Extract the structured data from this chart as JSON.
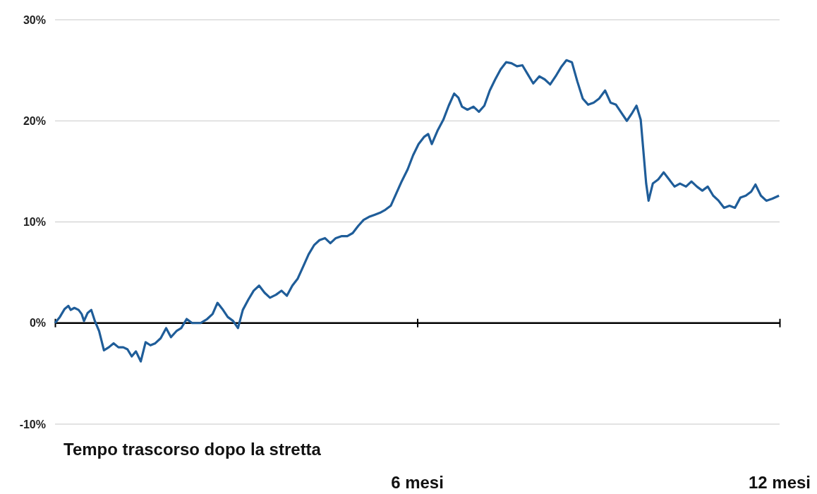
{
  "chart_data": {
    "type": "line",
    "xlabel": "Tempo trascorso dopo la stretta",
    "xlim": [
      0,
      12
    ],
    "xticks": [
      {
        "value": 0,
        "label": null
      },
      {
        "value": 6,
        "label": "6 mesi"
      },
      {
        "value": 12,
        "label": "12 mesi"
      }
    ],
    "ylim": [
      -10,
      30
    ],
    "yticks": [
      {
        "value": -10,
        "label": "-10%"
      },
      {
        "value": 0,
        "label": "0%"
      },
      {
        "value": 10,
        "label": "10%"
      },
      {
        "value": 20,
        "label": "20%"
      },
      {
        "value": 30,
        "label": "30%"
      }
    ],
    "grid": "y",
    "marker": "none",
    "line_style": "solid",
    "series": [
      {
        "color": "#1f5d99",
        "x": [
          0,
          0.08,
          0.16,
          0.22,
          0.26,
          0.32,
          0.39,
          0.44,
          0.48,
          0.54,
          0.6,
          0.66,
          0.73,
          0.81,
          0.89,
          0.97,
          1.05,
          1.13,
          1.2,
          1.27,
          1.34,
          1.42,
          1.5,
          1.58,
          1.66,
          1.75,
          1.84,
          1.92,
          2.01,
          2.09,
          2.18,
          2.27,
          2.41,
          2.52,
          2.61,
          2.69,
          2.77,
          2.86,
          2.95,
          3.03,
          3.11,
          3.2,
          3.29,
          3.38,
          3.47,
          3.56,
          3.66,
          3.75,
          3.84,
          3.93,
          4.02,
          4.11,
          4.2,
          4.29,
          4.38,
          4.47,
          4.56,
          4.65,
          4.75,
          4.84,
          4.93,
          5.02,
          5.11,
          5.2,
          5.29,
          5.38,
          5.47,
          5.56,
          5.65,
          5.74,
          5.84,
          5.93,
          6.02,
          6.11,
          6.18,
          6.24,
          6.34,
          6.43,
          6.52,
          6.61,
          6.68,
          6.74,
          6.83,
          6.93,
          7.02,
          7.11,
          7.2,
          7.29,
          7.38,
          7.47,
          7.56,
          7.65,
          7.74,
          7.83,
          7.92,
          8.02,
          8.11,
          8.2,
          8.29,
          8.38,
          8.47,
          8.56,
          8.65,
          8.74,
          8.83,
          8.92,
          9.01,
          9.11,
          9.2,
          9.29,
          9.38,
          9.47,
          9.56,
          9.63,
          9.7,
          9.74,
          9.79,
          9.83,
          9.9,
          9.99,
          10.08,
          10.17,
          10.26,
          10.35,
          10.45,
          10.54,
          10.63,
          10.72,
          10.81,
          10.9,
          10.99,
          11.08,
          11.17,
          11.26,
          11.35,
          11.44,
          11.53,
          11.6,
          11.69,
          11.78,
          11.88,
          11.99
        ],
        "values": [
          0,
          0.6,
          1.4,
          1.7,
          1.3,
          1.5,
          1.3,
          0.9,
          0.2,
          1.0,
          1.3,
          0.2,
          -0.8,
          -2.7,
          -2.4,
          -2.0,
          -2.4,
          -2.4,
          -2.6,
          -3.3,
          -2.8,
          -3.8,
          -1.9,
          -2.2,
          -2.0,
          -1.5,
          -0.5,
          -1.4,
          -0.8,
          -0.5,
          0.4,
          0,
          0,
          0.4,
          0.9,
          2.0,
          1.4,
          0.6,
          0.2,
          -0.5,
          1.3,
          2.3,
          3.2,
          3.7,
          3.0,
          2.5,
          2.8,
          3.2,
          2.7,
          3.7,
          4.4,
          5.6,
          6.8,
          7.7,
          8.2,
          8.4,
          7.9,
          8.4,
          8.6,
          8.6,
          8.9,
          9.6,
          10.2,
          10.5,
          10.7,
          10.9,
          11.2,
          11.6,
          12.8,
          14.0,
          15.2,
          16.6,
          17.7,
          18.4,
          18.7,
          17.7,
          19.1,
          20.1,
          21.5,
          22.7,
          22.3,
          21.4,
          21.1,
          21.4,
          20.9,
          21.5,
          23.0,
          24.1,
          25.1,
          25.8,
          25.7,
          25.4,
          25.5,
          24.6,
          23.7,
          24.4,
          24.1,
          23.6,
          24.4,
          25.3,
          26.0,
          25.8,
          23.9,
          22.2,
          21.6,
          21.8,
          22.2,
          23.0,
          21.8,
          21.6,
          20.8,
          20.0,
          20.8,
          21.5,
          20.1,
          17.3,
          13.8,
          12.1,
          13.8,
          14.2,
          14.9,
          14.2,
          13.5,
          13.8,
          13.5,
          14.0,
          13.5,
          13.1,
          13.5,
          12.6,
          12.1,
          11.4,
          11.6,
          11.4,
          12.4,
          12.6,
          13.0,
          13.7,
          12.6,
          12.1,
          12.3,
          12.6
        ]
      }
    ]
  }
}
